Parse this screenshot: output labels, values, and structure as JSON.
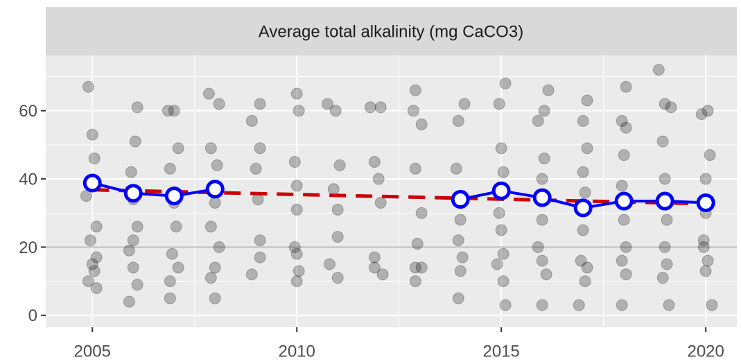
{
  "chart_data": {
    "type": "scatter",
    "title": "Average total alkalinity (mg CaCO3)",
    "xlim": [
      2003.86,
      2020.76
    ],
    "xticks": [
      2005,
      2010,
      2015,
      2020
    ],
    "ylim": [
      -3.5,
      76.2
    ],
    "yticks": [
      0,
      20,
      40,
      60
    ],
    "grid": true,
    "hline": 20,
    "hline_color": "#bdbdbd",
    "series": [
      {
        "type": "scatter",
        "color": "#000000",
        "alpha": 0.25,
        "x": [
          2004.9,
          2005,
          2005.05,
          2004.85,
          2005.1,
          2004.95,
          2005,
          2005.05,
          2004.9,
          2005.1,
          2005.1,
          2005.9,
          2006.1,
          2006.05,
          2005.95,
          2006,
          2006.1,
          2005.9,
          2006,
          2006.1,
          2006,
          2006.85,
          2007,
          2007.1,
          2006.9,
          2007,
          2007.05,
          2006.95,
          2007.1,
          2006.9,
          2006.9,
          2007.85,
          2008.1,
          2007.9,
          2008.05,
          2008,
          2007.9,
          2008.1,
          2008,
          2007.9,
          2008,
          2008.9,
          2009.1,
          2009.1,
          2009,
          2009.05,
          2009.1,
          2009.1,
          2008.9,
          2010,
          2010.05,
          2009.95,
          2010,
          2010,
          2009.95,
          2010,
          2010.05,
          2010,
          2010.75,
          2010.95,
          2011.05,
          2010.9,
          2011,
          2011,
          2010.8,
          2011,
          2011.8,
          2012.05,
          2011.9,
          2012,
          2012.05,
          2011.9,
          2011.9,
          2012.1,
          2012.9,
          2012.85,
          2013.05,
          2012.9,
          2013.05,
          2012.95,
          2012.9,
          2013.05,
          2012.9,
          2014.1,
          2013.95,
          2013.9,
          2014.05,
          2014,
          2013.95,
          2014.05,
          2014,
          2013.95,
          2015.1,
          2014.95,
          2015,
          2015.05,
          2014.95,
          2015,
          2015.05,
          2014.9,
          2015.05,
          2015.1,
          2016.15,
          2016.05,
          2015.9,
          2016.05,
          2016,
          2016,
          2015.9,
          2016,
          2016.1,
          2016,
          2017.1,
          2017,
          2017.1,
          2017,
          2017.05,
          2017,
          2016.95,
          2017.1,
          2017.05,
          2016.9,
          2018.05,
          2017.95,
          2018.05,
          2018,
          2017.95,
          2018,
          2018.05,
          2017.95,
          2018.05,
          2017.95,
          2018.85,
          2019,
          2019.15,
          2018.95,
          2019,
          2019.05,
          2019,
          2019.05,
          2018.95,
          2019.1,
          2020.05,
          2019.9,
          2020.1,
          2020,
          2020,
          2019.95,
          2020.05,
          2020,
          2019.95,
          2020.15
        ],
        "values": [
          67,
          53,
          46,
          35,
          26,
          22,
          15,
          13,
          10,
          8,
          17,
          4,
          61,
          51,
          42,
          34,
          26,
          19,
          14,
          9,
          22,
          60,
          60,
          49,
          43,
          33,
          26,
          18,
          14,
          10,
          5,
          65,
          62,
          49,
          44,
          33,
          26,
          20,
          14,
          11,
          5,
          57,
          62,
          49,
          43,
          34,
          22,
          17,
          12,
          65,
          60,
          45,
          38,
          31,
          20,
          18,
          13,
          10,
          62,
          60,
          44,
          37,
          31,
          23,
          15,
          11,
          61,
          61,
          45,
          40,
          33,
          17,
          14,
          12,
          66,
          60,
          56,
          43,
          30,
          21,
          14,
          14,
          10,
          62,
          57,
          43,
          35,
          28,
          22,
          17,
          13,
          5,
          68,
          62,
          49,
          42,
          30,
          25,
          18,
          15,
          10,
          3,
          66,
          60,
          57,
          46,
          40,
          28,
          20,
          16,
          12,
          3,
          63,
          57,
          49,
          42,
          36,
          25,
          16,
          14,
          10,
          3,
          67,
          57,
          55,
          47,
          38,
          28,
          20,
          16,
          12,
          3,
          72,
          62,
          61,
          51,
          40,
          28,
          20,
          15,
          11,
          3,
          60,
          59,
          47,
          40,
          30,
          22,
          16,
          13,
          20,
          3
        ]
      },
      {
        "type": "line",
        "color": "#cc0000",
        "dashed": true,
        "x": [
          2005,
          2020
        ],
        "values": [
          36.8,
          32.7
        ]
      },
      {
        "type": "line",
        "color": "#0000ff",
        "markers": true,
        "x": [
          2005,
          2006,
          2007,
          2008,
          2009,
          2010,
          2011,
          2012,
          2013,
          2014,
          2015,
          2016,
          2017,
          2018,
          2019,
          2020
        ],
        "values": [
          38.8,
          35.8,
          35,
          37,
          null,
          null,
          null,
          null,
          null,
          34,
          36.5,
          34.5,
          31.5,
          33.5,
          33.5,
          33
        ]
      }
    ]
  }
}
